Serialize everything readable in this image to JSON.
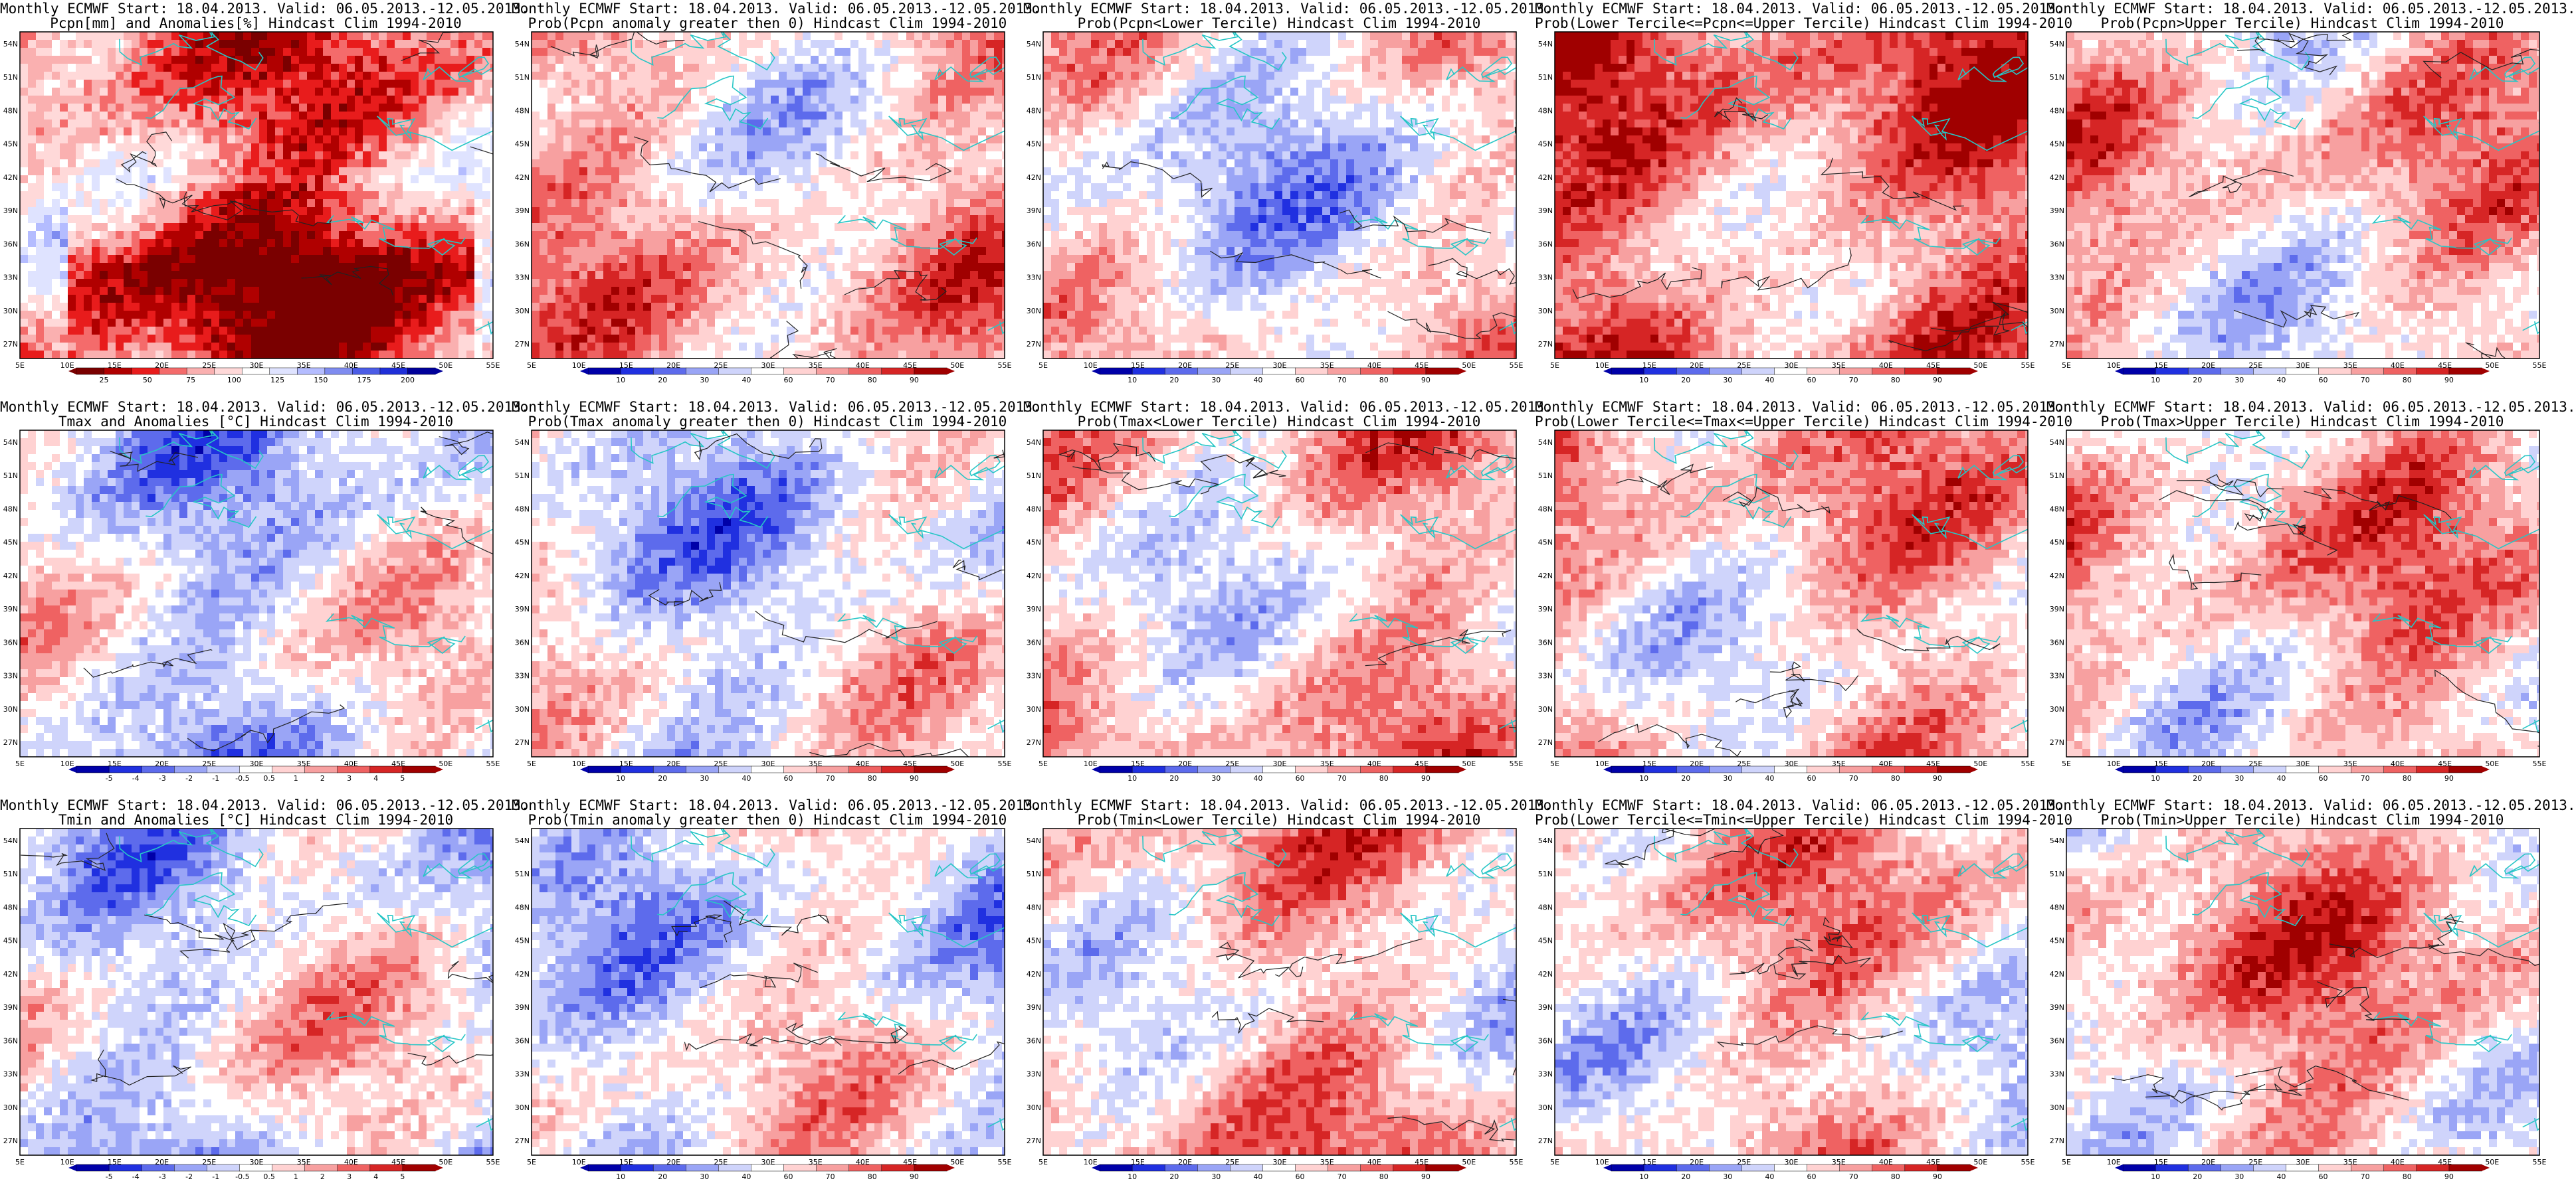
{
  "palettes": {
    "precip": [
      "#7a0000",
      "#b00000",
      "#e81c1c",
      "#f46b6b",
      "#fab0b0",
      "#ffd9d9",
      "#ffffff",
      "#dfe3ff",
      "#b4bcff",
      "#7f8cf0",
      "#4b5ce6",
      "#1f2fd8",
      "#00009a"
    ],
    "anom": [
      "#0000a8",
      "#2030e0",
      "#5d6bec",
      "#9aa5f6",
      "#cfd4fb",
      "#ffffff",
      "#ffd2d2",
      "#f7a0a0",
      "#ef6262",
      "#d62525",
      "#a00000"
    ],
    "prob": [
      "#0000a8",
      "#2030e0",
      "#5d6bec",
      "#9aa5f6",
      "#cfd4fb",
      "#ffffff",
      "#ffd2d2",
      "#f7a0a0",
      "#ef6262",
      "#d62525",
      "#a00000"
    ]
  },
  "lat_labels": [
    "54N",
    "51N",
    "48N",
    "45N",
    "42N",
    "39N",
    "36N",
    "33N",
    "30N",
    "27N"
  ],
  "lon_labels": [
    "5E",
    "10E",
    "15E",
    "20E",
    "25E",
    "30E",
    "35E",
    "40E",
    "45E",
    "50E",
    "55E"
  ],
  "panels": [
    {
      "line1": "Monthly ECMWF Start: 18.04.2013. Valid: 06.05.2013.-12.05.2013.",
      "line2": "Pcpn[mm] and Anomalies[%] Hindcast Clim 1994-2010",
      "palette": "precip",
      "bias": 0.55,
      "cb_labels": [
        "25",
        "50",
        "75",
        "100",
        "125",
        "150",
        "175",
        "200"
      ]
    },
    {
      "line1": "Monthly ECMWF Start: 18.04.2013. Valid: 06.05.2013.-12.05.2013.",
      "line2": "Prob(Pcpn anomaly greater then 0) Hindcast Clim 1994-2010",
      "palette": "prob",
      "bias": -0.35,
      "cb_labels": [
        "10",
        "20",
        "30",
        "40",
        "60",
        "70",
        "80",
        "90"
      ]
    },
    {
      "line1": "Monthly ECMWF Start: 18.04.2013. Valid: 06.05.2013.-12.05.2013.",
      "line2": "Prob(Pcpn<Lower Tercile) Hindcast Clim 1994-2010",
      "palette": "prob",
      "bias": 0.0,
      "cb_labels": [
        "10",
        "20",
        "30",
        "40",
        "60",
        "70",
        "80",
        "90"
      ]
    },
    {
      "line1": "Monthly ECMWF Start: 18.04.2013. Valid: 06.05.2013.-12.05.2013.",
      "line2": "Prob(Lower Tercile<=Pcpn<=Upper Tercile) Hindcast Clim 1994-2010",
      "palette": "prob",
      "bias": -0.75,
      "cb_labels": [
        "10",
        "20",
        "30",
        "40",
        "60",
        "70",
        "80",
        "90"
      ]
    },
    {
      "line1": "Monthly ECMWF Start: 18.04.2013. Valid: 06.05.2013.-12.05.2013.",
      "line2": "Prob(Pcpn>Upper Tercile) Hindcast Clim 1994-2010",
      "palette": "prob",
      "bias": -0.3,
      "cb_labels": [
        "10",
        "20",
        "30",
        "40",
        "60",
        "70",
        "80",
        "90"
      ]
    },
    {
      "line1": "Monthly ECMWF Start: 18.04.2013. Valid: 06.05.2013.-12.05.2013.",
      "line2": "Tmax and Anomalies [°C] Hindcast Clim 1994-2010",
      "palette": "anom",
      "bias": 0.15,
      "cb_labels": [
        "-5",
        "-4",
        "-3",
        "-2",
        "-1",
        "-0.5",
        "0.5",
        "1",
        "2",
        "3",
        "4",
        "5"
      ]
    },
    {
      "line1": "Monthly ECMWF Start: 18.04.2013. Valid: 06.05.2013.-12.05.2013.",
      "line2": "Prob(Tmax anomaly greater then 0) Hindcast Clim 1994-2010",
      "palette": "prob",
      "bias": 0.1,
      "cb_labels": [
        "10",
        "20",
        "30",
        "40",
        "60",
        "70",
        "80",
        "90"
      ]
    },
    {
      "line1": "Monthly ECMWF Start: 18.04.2013. Valid: 06.05.2013.-12.05.2013.",
      "line2": "Prob(Tmax<Lower Tercile) Hindcast Clim 1994-2010",
      "palette": "prob",
      "bias": -0.3,
      "cb_labels": [
        "10",
        "20",
        "30",
        "40",
        "60",
        "70",
        "80",
        "90"
      ]
    },
    {
      "line1": "Monthly ECMWF Start: 18.04.2013. Valid: 06.05.2013.-12.05.2013.",
      "line2": "Prob(Lower Tercile<=Tmax<=Upper Tercile) Hindcast Clim 1994-2010",
      "palette": "prob",
      "bias": -0.35,
      "cb_labels": [
        "10",
        "20",
        "30",
        "40",
        "60",
        "70",
        "80",
        "90"
      ]
    },
    {
      "line1": "Monthly ECMWF Start: 18.04.2013. Valid: 06.05.2013.-12.05.2013.",
      "line2": "Prob(Tmax>Upper Tercile) Hindcast Clim 1994-2010",
      "palette": "prob",
      "bias": -0.4,
      "cb_labels": [
        "10",
        "20",
        "30",
        "40",
        "60",
        "70",
        "80",
        "90"
      ]
    },
    {
      "line1": "Monthly ECMWF Start: 18.04.2013. Valid: 06.05.2013.-12.05.2013.",
      "line2": "Tmin and Anomalies [°C] Hindcast Clim 1994-2010",
      "palette": "anom",
      "bias": 0.05,
      "cb_labels": [
        "-5",
        "-4",
        "-3",
        "-2",
        "-1",
        "-0.5",
        "0.5",
        "1",
        "2",
        "3",
        "4",
        "5"
      ]
    },
    {
      "line1": "Monthly ECMWF Start: 18.04.2013. Valid: 06.05.2013.-12.05.2013.",
      "line2": "Prob(Tmin anomaly greater then 0) Hindcast Clim 1994-2010",
      "palette": "prob",
      "bias": 0.05,
      "cb_labels": [
        "10",
        "20",
        "30",
        "40",
        "60",
        "70",
        "80",
        "90"
      ]
    },
    {
      "line1": "Monthly ECMWF Start: 18.04.2013. Valid: 06.05.2013.-12.05.2013.",
      "line2": "Prob(Tmin<Lower Tercile) Hindcast Clim 1994-2010",
      "palette": "prob",
      "bias": -0.35,
      "cb_labels": [
        "10",
        "20",
        "30",
        "40",
        "60",
        "70",
        "80",
        "90"
      ]
    },
    {
      "line1": "Monthly ECMWF Start: 18.04.2013. Valid: 06.05.2013.-12.05.2013.",
      "line2": "Prob(Lower Tercile<=Tmin<=Upper Tercile) Hindcast Clim 1994-2010",
      "palette": "prob",
      "bias": -0.3,
      "cb_labels": [
        "10",
        "20",
        "30",
        "40",
        "60",
        "70",
        "80",
        "90"
      ]
    },
    {
      "line1": "Monthly ECMWF Start: 18.04.2013. Valid: 06.05.2013.-12.05.2013.",
      "line2": "Prob(Tmin>Upper Tercile) Hindcast Clim 1994-2010",
      "palette": "prob",
      "bias": -0.45,
      "cb_labels": [
        "10",
        "20",
        "30",
        "40",
        "60",
        "70",
        "80",
        "90"
      ]
    }
  ]
}
